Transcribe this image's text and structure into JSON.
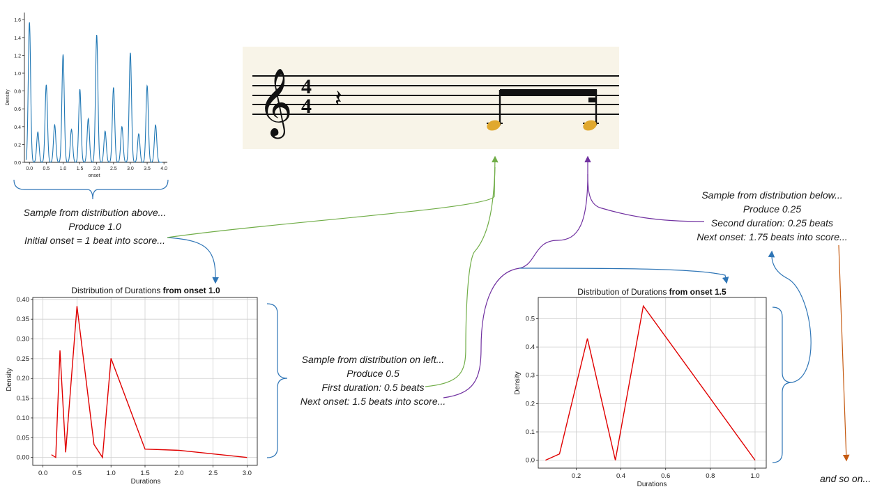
{
  "annotations": {
    "left": {
      "line1": "Sample from distribution above...",
      "line2": "Produce 1.0",
      "line3": "Initial onset = 1 beat into score..."
    },
    "middle": {
      "line1": "Sample from distribution on left...",
      "line2": "Produce 0.5",
      "line3": "First duration: 0.5 beats",
      "line4": "Next onset: 1.5 beats into score..."
    },
    "right": {
      "line1": "Sample from distribution below...",
      "line2": "Produce 0.25",
      "line3": "Second duration: 0.25 beats",
      "line4": "Next onset: 1.75 beats into score..."
    },
    "ending": "and so on..."
  },
  "score": {
    "time_signature_top": "4",
    "time_signature_bottom": "4",
    "note_color": "#e0a82e"
  },
  "colors": {
    "green_arrow": "#70ad47",
    "purple_arrow": "#7030a0",
    "blue_arrow": "#2e75b6",
    "orange_arrow": "#c55a11",
    "density_line": "#1f77b4",
    "duration_line": "#e00000"
  },
  "chart_data": [
    {
      "type": "line",
      "id": "onset-density",
      "title": "",
      "xlabel": "onset",
      "ylabel": "Density",
      "xlim": [
        -0.15,
        4.1
      ],
      "ylim": [
        0,
        1.68
      ],
      "xticks": [
        "0.0",
        "0.5",
        "1.0",
        "1.5",
        "2.0",
        "2.5",
        "3.0",
        "3.5",
        "4.0"
      ],
      "yticks": [
        "0.0",
        "0.2",
        "0.4",
        "0.6",
        "0.8",
        "1.0",
        "1.2",
        "1.4",
        "1.6"
      ],
      "grid": false,
      "peaks": [
        {
          "x": 0.0,
          "y": 1.57
        },
        {
          "x": 0.25,
          "y": 0.34
        },
        {
          "x": 0.5,
          "y": 0.87
        },
        {
          "x": 0.75,
          "y": 0.42
        },
        {
          "x": 1.0,
          "y": 1.21
        },
        {
          "x": 1.25,
          "y": 0.37
        },
        {
          "x": 1.5,
          "y": 0.82
        },
        {
          "x": 1.75,
          "y": 0.49
        },
        {
          "x": 2.0,
          "y": 1.43
        },
        {
          "x": 2.25,
          "y": 0.35
        },
        {
          "x": 2.5,
          "y": 0.84
        },
        {
          "x": 2.75,
          "y": 0.4
        },
        {
          "x": 3.0,
          "y": 1.23
        },
        {
          "x": 3.25,
          "y": 0.32
        },
        {
          "x": 3.5,
          "y": 0.86
        },
        {
          "x": 3.75,
          "y": 0.42
        }
      ]
    },
    {
      "type": "line",
      "id": "durations-onset-1",
      "title": "Distribution of Durations ",
      "title_bold": "from onset 1.0",
      "xlabel": "Durations",
      "ylabel": "Density",
      "xlim": [
        -0.15,
        3.15
      ],
      "ylim": [
        -0.02,
        0.405
      ],
      "xticks": [
        "0.0",
        "0.5",
        "1.0",
        "1.5",
        "2.0",
        "2.5",
        "3.0"
      ],
      "yticks": [
        "0.00",
        "0.05",
        "0.10",
        "0.15",
        "0.20",
        "0.25",
        "0.30",
        "0.35",
        "0.40"
      ],
      "grid": true,
      "x": [
        0.125,
        0.1875,
        0.25,
        0.3333,
        0.5,
        0.75,
        0.875,
        1.0,
        1.5,
        2.0,
        3.0
      ],
      "values": [
        0.007,
        0.0,
        0.271,
        0.013,
        0.383,
        0.033,
        0.0,
        0.251,
        0.021,
        0.018,
        0.0
      ]
    },
    {
      "type": "line",
      "id": "durations-onset-1-5",
      "title": "Distribution of Durations ",
      "title_bold": "from onset 1.5",
      "xlabel": "Durations",
      "ylabel": "Density",
      "xlim": [
        0.03,
        1.05
      ],
      "ylim": [
        -0.028,
        0.575
      ],
      "xticks": [
        "0.2",
        "0.4",
        "0.6",
        "0.8",
        "1.0"
      ],
      "yticks": [
        "0.0",
        "0.1",
        "0.2",
        "0.3",
        "0.4",
        "0.5"
      ],
      "grid": true,
      "x": [
        0.0625,
        0.125,
        0.25,
        0.375,
        0.5,
        1.0
      ],
      "values": [
        0.0,
        0.022,
        0.43,
        0.0,
        0.545,
        0.0
      ]
    }
  ]
}
